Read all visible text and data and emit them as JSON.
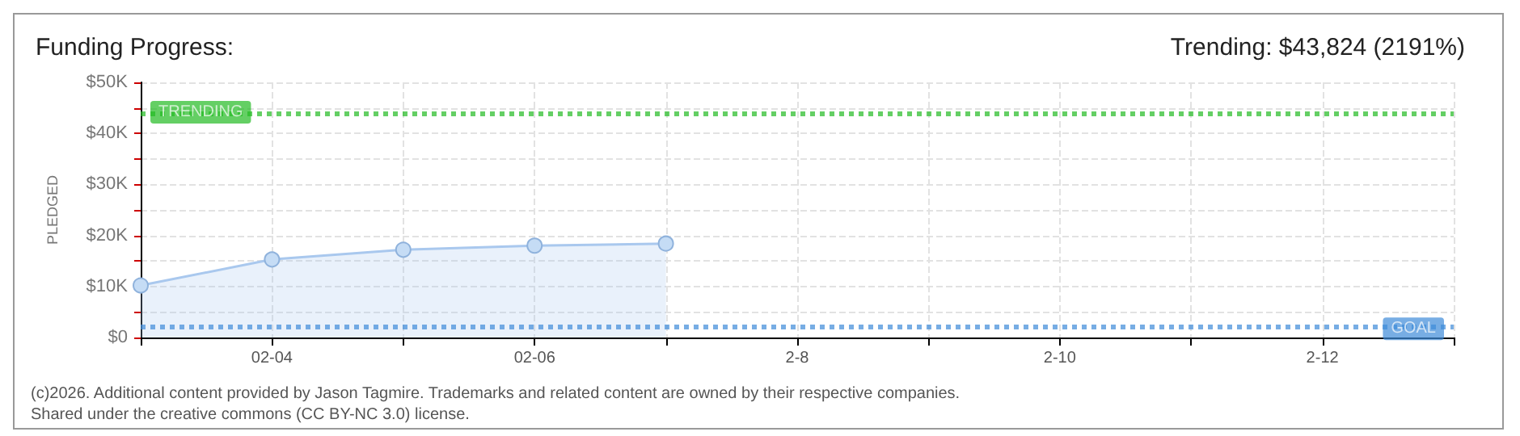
{
  "chart_data": {
    "type": "area",
    "title": "Funding Progress:",
    "subtitle": "Trending: $43,824 (2191%)",
    "ylabel": "PLEDGED",
    "x": [
      "--02-03",
      "--02-04",
      "--02-05",
      "--02-06",
      "--02-07"
    ],
    "series": [
      {
        "color": "#a9c8ee",
        "values": [
          10200,
          15300,
          17200,
          18000,
          18400
        ]
      }
    ],
    "xlim": [
      "--02-03",
      "--02-13"
    ],
    "xticks": [
      {
        "value": "--02-03",
        "label": null
      },
      {
        "value": "--02-04",
        "label": "02-04"
      },
      {
        "value": "--02-05",
        "label": null
      },
      {
        "value": "--02-06",
        "label": "02-06"
      },
      {
        "value": "--02-07",
        "label": null
      },
      {
        "value": "--02-08",
        "label": "2-8"
      },
      {
        "value": "--02-09",
        "label": null
      },
      {
        "value": "--02-10",
        "label": "2-10"
      },
      {
        "value": "--02-11",
        "label": null
      },
      {
        "value": "--02-12",
        "label": "2-12"
      },
      {
        "value": "--02-13",
        "label": null
      }
    ],
    "ylim": [
      0,
      50000
    ],
    "yticks": [
      {
        "value": 0,
        "label": "$0"
      },
      {
        "value": 5000,
        "label": null
      },
      {
        "value": 10000,
        "label": "$10K"
      },
      {
        "value": 15000,
        "label": null
      },
      {
        "value": 20000,
        "label": "$20K"
      },
      {
        "value": 25000,
        "label": null
      },
      {
        "value": 30000,
        "label": "$30K"
      },
      {
        "value": 35000,
        "label": null
      },
      {
        "value": 40000,
        "label": "$40K"
      },
      {
        "value": 45000,
        "label": null
      },
      {
        "value": 50000,
        "label": "$50K"
      }
    ],
    "ref_lines": [
      {
        "axis": "y",
        "value": 43824,
        "label": "TRENDING",
        "color": "#22bb22",
        "line_style": "dotted"
      },
      {
        "axis": "y",
        "value": 2000,
        "label": "GOAL",
        "color": "#3d8ad8",
        "line_style": "dotted"
      }
    ],
    "annotations": [
      "(c)2026. Additional content provided by Jason Tagmire. Trademarks and related content are owned by their respective companies.",
      "Shared under the creative commons (CC BY-NC 3.0) license."
    ],
    "grid": true,
    "marker": "circle"
  }
}
